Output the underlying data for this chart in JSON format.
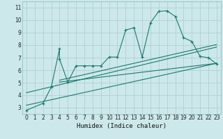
{
  "title": "",
  "xlabel": "Humidex (Indice chaleur)",
  "bg_color": "#cce8ea",
  "grid_color": "#b0d0d3",
  "line_color": "#1a7a6e",
  "xlim": [
    -0.5,
    23.5
  ],
  "ylim": [
    2.5,
    11.5
  ],
  "xticks": [
    0,
    1,
    2,
    3,
    4,
    5,
    6,
    7,
    8,
    9,
    10,
    11,
    12,
    13,
    14,
    15,
    16,
    17,
    18,
    19,
    20,
    21,
    22,
    23
  ],
  "yticks": [
    3,
    4,
    5,
    6,
    7,
    8,
    9,
    10,
    11
  ],
  "main_line_x": [
    0,
    2,
    3,
    4,
    4,
    5,
    6,
    7,
    8,
    9,
    10,
    11,
    12,
    13,
    14,
    15,
    16,
    17,
    18,
    19,
    20,
    21,
    22,
    23
  ],
  "main_line_y": [
    2.8,
    3.35,
    4.65,
    7.7,
    6.9,
    5.05,
    6.35,
    6.35,
    6.35,
    6.35,
    7.05,
    7.05,
    9.2,
    9.4,
    7.05,
    9.8,
    10.7,
    10.75,
    10.3,
    8.6,
    8.3,
    7.1,
    7.0,
    6.5
  ],
  "line2_x": [
    0,
    23
  ],
  "line2_y": [
    3.2,
    6.55
  ],
  "line3_x": [
    4,
    23
  ],
  "line3_y": [
    5.2,
    8.05
  ],
  "line4_x": [
    4,
    23
  ],
  "line4_y": [
    5.05,
    6.55
  ],
  "line5_x": [
    0,
    23
  ],
  "line5_y": [
    4.2,
    7.85
  ]
}
